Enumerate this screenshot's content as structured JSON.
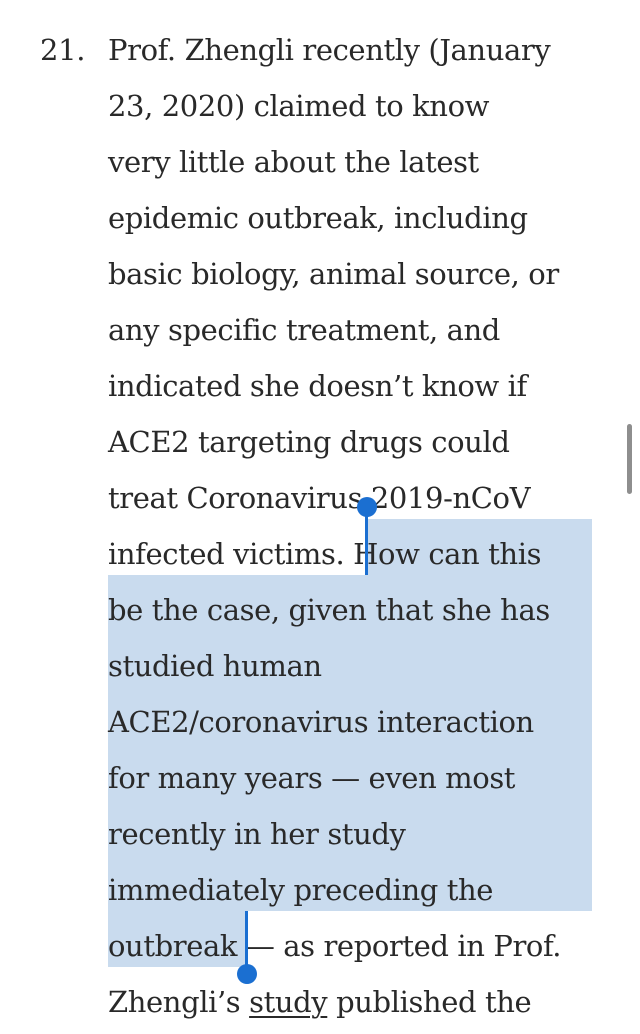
{
  "list_number": "21.",
  "lines": [
    "Prof. Zhengli recently (January",
    "23, 2020) claimed to know",
    "very little about the latest",
    "epidemic outbreak, including",
    "basic biology, animal source, or",
    "any specific treatment, and",
    "indicated she doesn’t know if",
    "ACE2 targeting drugs could",
    "treat Coronavirus 2019-nCoV"
  ],
  "line_split": {
    "before": "infected victims. ",
    "selected": "How can this"
  },
  "selected_lines": [
    "be the case, given that she has",
    "studied human",
    "ACE2/coronavirus interaction",
    "for many years — even most",
    "recently in her study",
    "immediately preceding the"
  ],
  "last_selected_line": {
    "selected": "outbreak",
    "after": " — as reported in Prof."
  },
  "final_line": {
    "before": "Zhengli’s ",
    "link": "study",
    "after": " published the"
  },
  "colors": {
    "text": "#292929",
    "selection": "#c9dbee",
    "handle": "#1b6fd1",
    "scrollbar": "#8e8e8e"
  }
}
